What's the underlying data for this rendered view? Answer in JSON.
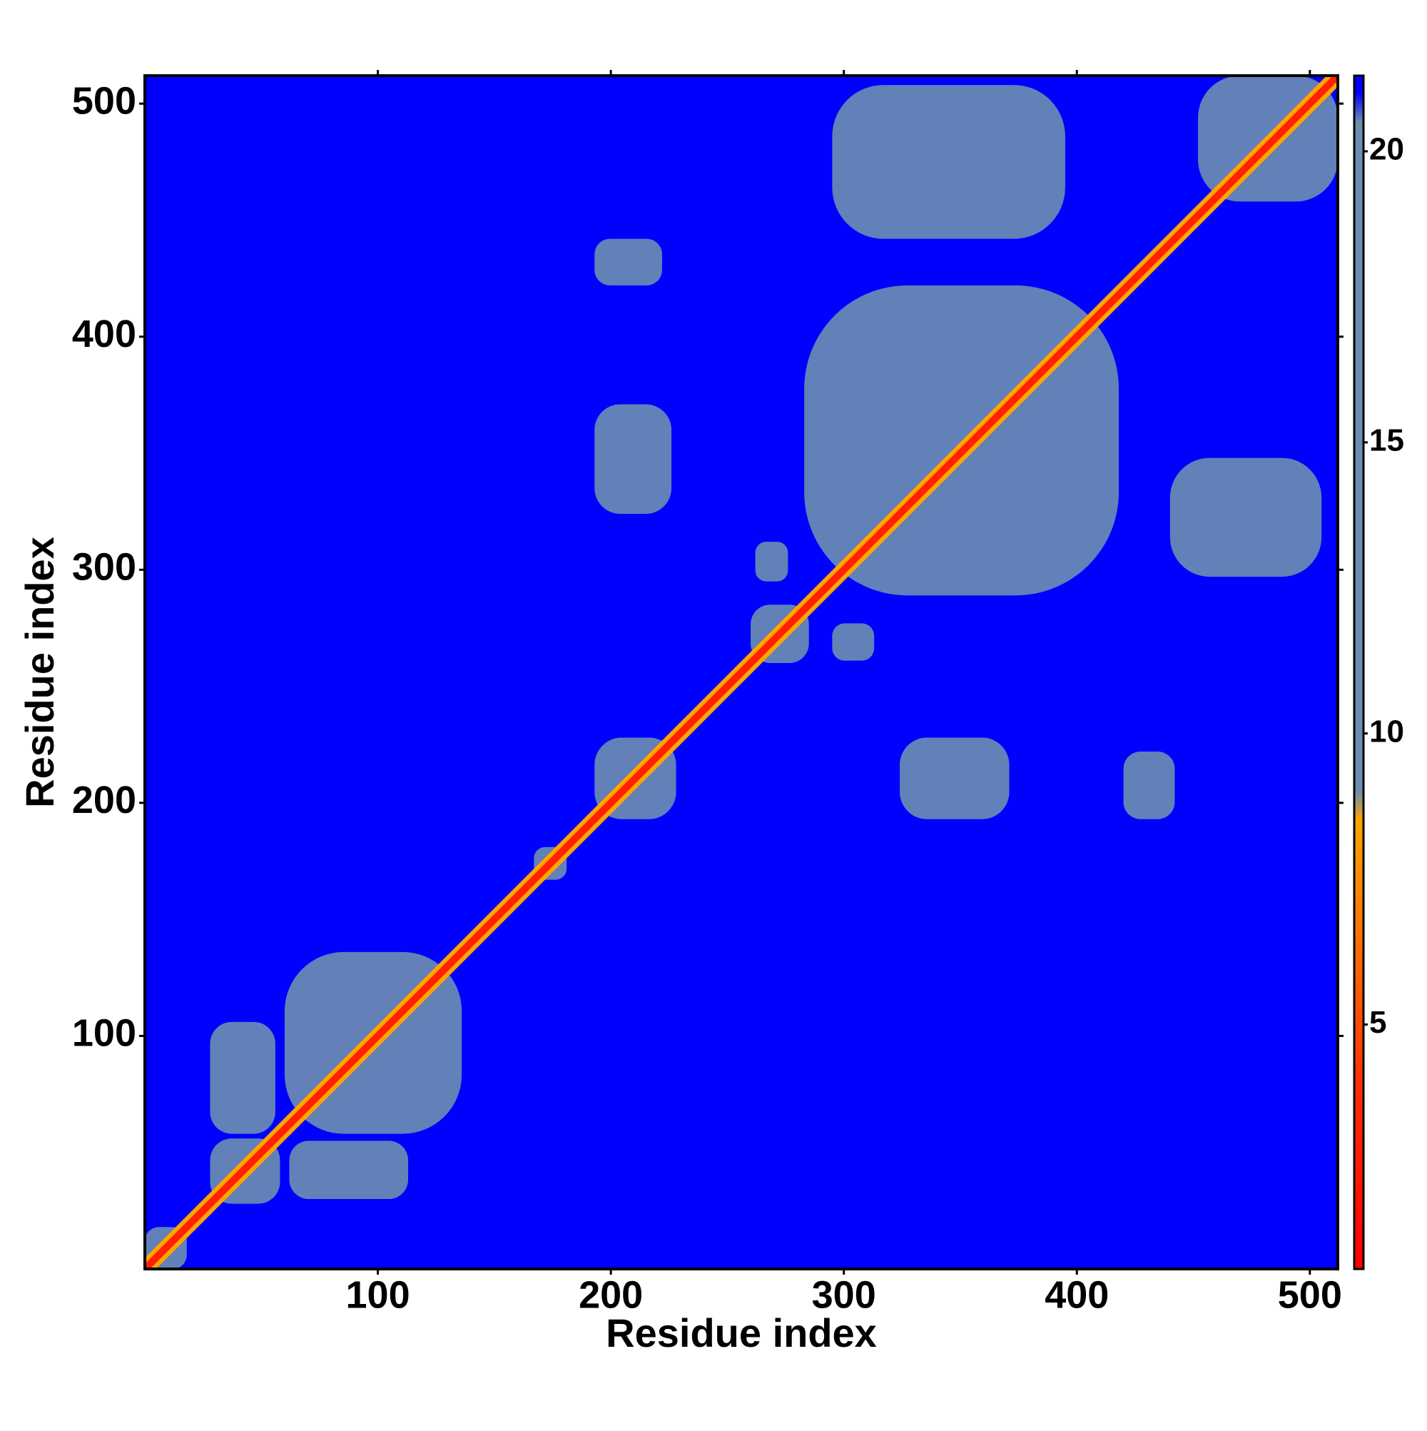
{
  "chart_data": {
    "type": "heatmap",
    "xlabel": "Residue index",
    "ylabel": "Residue index",
    "xlim": [
      0,
      512
    ],
    "ylim": [
      0,
      512
    ],
    "xticks": [
      100,
      200,
      300,
      400,
      500
    ],
    "yticks": [
      100,
      200,
      300,
      400,
      500
    ],
    "clim": [
      0.8,
      21.3
    ],
    "cticks": [
      5,
      10,
      15,
      20
    ],
    "colorscale": [
      [
        0.8,
        "#ff0000"
      ],
      [
        4,
        "#ff3000"
      ],
      [
        8.5,
        "#ffa500"
      ],
      [
        9,
        "#6b8fb0"
      ],
      [
        20.5,
        "#6b8fb0"
      ],
      [
        21,
        "#0000ff"
      ]
    ],
    "background": 21.3,
    "diagonal": 3,
    "blocks": [
      {
        "x": [
          28,
          56
        ],
        "y": [
          58,
          106
        ],
        "value": 14
      },
      {
        "x": [
          62,
          113
        ],
        "y": [
          30,
          55
        ],
        "value": 13
      },
      {
        "x": [
          60,
          136
        ],
        "y": [
          58,
          136
        ],
        "value": 14
      },
      {
        "x": [
          28,
          58
        ],
        "y": [
          28,
          56
        ],
        "value": 12
      },
      {
        "x": [
          193,
          222
        ],
        "y": [
          422,
          442
        ],
        "value": 13
      },
      {
        "x": [
          193,
          226
        ],
        "y": [
          324,
          371
        ],
        "value": 15
      },
      {
        "x": [
          283,
          418
        ],
        "y": [
          289,
          422
        ],
        "value": 14
      },
      {
        "x": [
          295,
          395
        ],
        "y": [
          442,
          508
        ],
        "value": 17
      },
      {
        "x": [
          452,
          512
        ],
        "y": [
          458,
          512
        ],
        "value": 12
      },
      {
        "x": [
          324,
          371
        ],
        "y": [
          193,
          228
        ],
        "value": 16
      },
      {
        "x": [
          420,
          442
        ],
        "y": [
          193,
          222
        ],
        "value": 12
      },
      {
        "x": [
          440,
          505
        ],
        "y": [
          297,
          348
        ],
        "value": 17
      },
      {
        "x": [
          193,
          228
        ],
        "y": [
          193,
          228
        ],
        "value": 11
      },
      {
        "x": [
          260,
          285
        ],
        "y": [
          260,
          285
        ],
        "value": 11
      },
      {
        "x": [
          167,
          181
        ],
        "y": [
          167,
          181
        ],
        "value": 10
      },
      {
        "x": [
          262,
          276
        ],
        "y": [
          295,
          312
        ],
        "value": 14
      },
      {
        "x": [
          295,
          313
        ],
        "y": [
          261,
          277
        ],
        "value": 14
      },
      {
        "x": [
          0,
          18
        ],
        "y": [
          0,
          18
        ],
        "value": 11
      }
    ]
  }
}
